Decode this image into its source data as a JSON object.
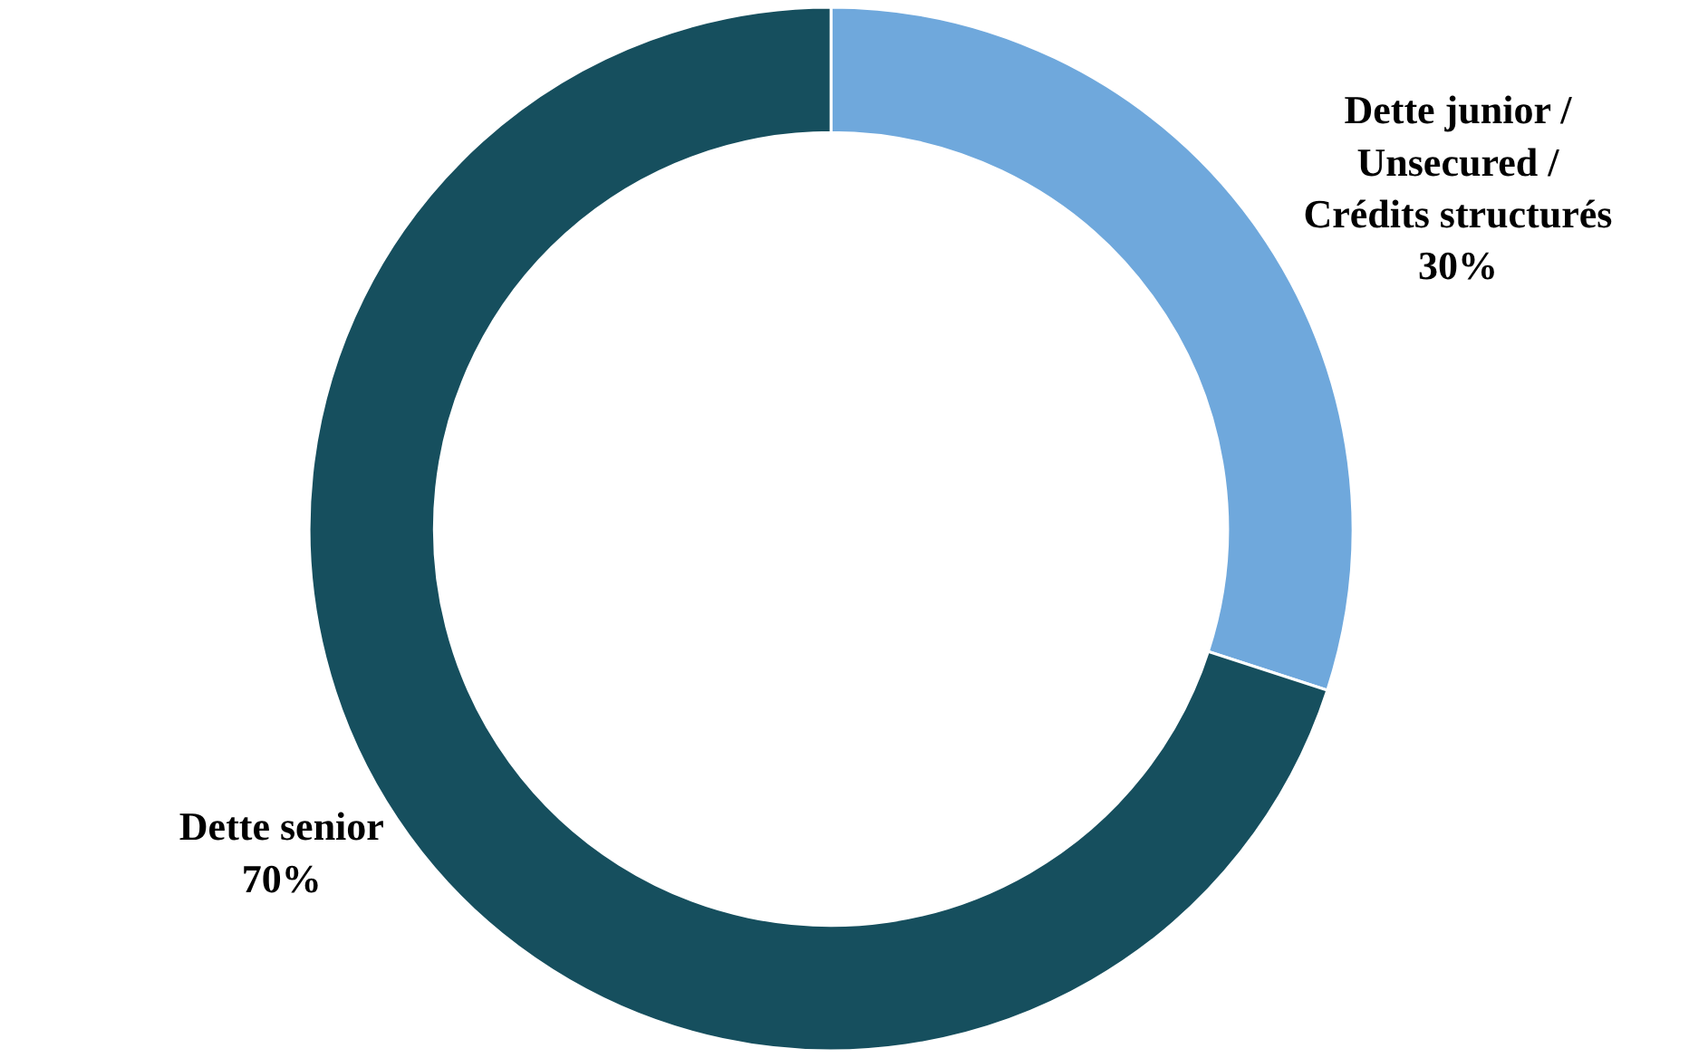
{
  "chart_data": {
    "type": "donut",
    "categories": [
      "Dette junior /\nUnsecured /\nCrédits structurés",
      "Dette senior"
    ],
    "values": [
      30,
      70
    ],
    "value_labels": [
      "30%",
      "70%"
    ],
    "colors": [
      "#6fa8dc",
      "#164f5e"
    ],
    "legend": false
  }
}
